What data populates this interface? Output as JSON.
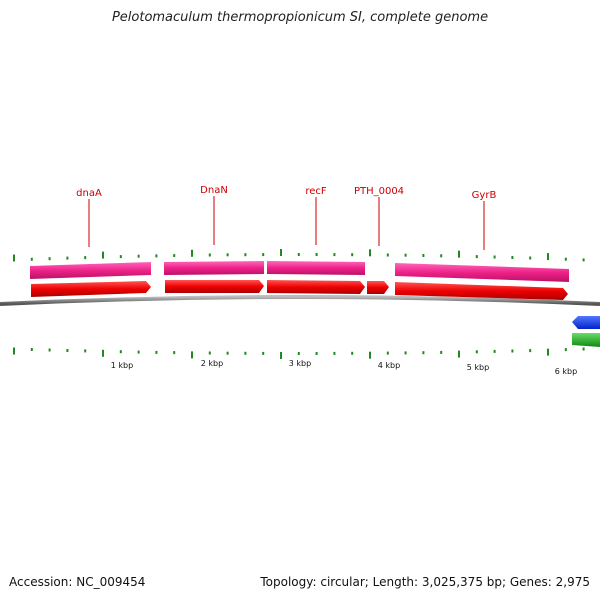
{
  "title": "Pelotomaculum thermopropionicum SI, complete genome",
  "footer": {
    "accession": "Accession: NC_009454",
    "summary": "Topology: circular; Length: 3,025,375 bp; Genes: 2,975"
  },
  "colors": {
    "cds_red": "#ee0000",
    "gene_pink": "#ee2288",
    "backbone_gray": "#888888",
    "tick_green": "#228822",
    "label_red": "#cc0000",
    "reverse_blue": "#1133ee",
    "reverse_green": "#22aa22"
  },
  "genes": [
    {
      "label": "dnaA"
    },
    {
      "label": "DnaN"
    },
    {
      "label": "recF"
    },
    {
      "label": "PTH_0004"
    },
    {
      "label": "GyrB"
    }
  ],
  "ruler": {
    "labels": [
      "1 kbp",
      "2 kbp",
      "3 kbp",
      "4 kbp",
      "5 kbp",
      "6 kbp"
    ]
  }
}
